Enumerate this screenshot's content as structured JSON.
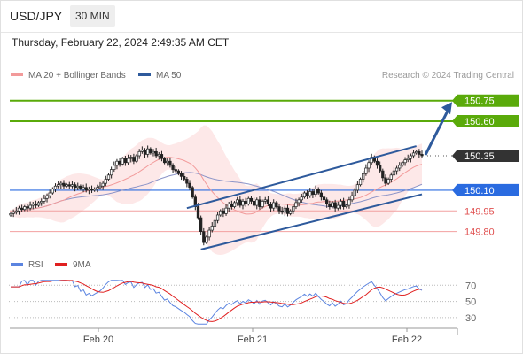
{
  "header": {
    "symbol": "USD/JPY",
    "timeframe": "30 MIN"
  },
  "datetime": "Thursday, February 22, 2024 2:49:35 AM CET",
  "legend": {
    "ma20_bb": "MA 20 + Bollinger Bands",
    "ma50": "MA 50"
  },
  "copyright": "Research © 2024 Trading Central",
  "rsi_legend": {
    "rsi": "RSI",
    "ma9": "9MA"
  },
  "colors": {
    "green": "#5aaa0a",
    "blue": "#2a6be0",
    "red": "#e05050",
    "dark": "#333333",
    "trend": "#2e5a9c",
    "bb_fill": "#fde4e4",
    "ma20": "#f29a9a",
    "ma50": "#8c94c8",
    "candle": "#222222"
  },
  "chart_data": [
    {
      "type": "candlestick",
      "x_ticks": [
        "Feb 20",
        "Feb 21",
        "Feb 22"
      ],
      "ylim": [
        149.65,
        150.87
      ],
      "levels": [
        {
          "label": "150.75",
          "value": 150.75,
          "style": "resistance",
          "color": "#5aaa0a"
        },
        {
          "label": "150.60",
          "value": 150.6,
          "style": "resistance",
          "color": "#5aaa0a"
        },
        {
          "label": "150.35",
          "value": 150.35,
          "style": "last-price",
          "color": "#333333"
        },
        {
          "label": "150.10",
          "value": 150.1,
          "style": "pivot",
          "color": "#2a6be0"
        },
        {
          "label": "149.95",
          "value": 149.95,
          "style": "support",
          "color": "#e05050"
        },
        {
          "label": "149.80",
          "value": 149.8,
          "style": "support",
          "color": "#e05050"
        }
      ],
      "close": [
        149.93,
        149.94,
        149.95,
        149.97,
        149.96,
        149.98,
        149.97,
        149.99,
        150.0,
        149.99,
        150.01,
        150.02,
        150.04,
        150.06,
        150.08,
        150.11,
        150.13,
        150.14,
        150.15,
        150.13,
        150.14,
        150.13,
        150.14,
        150.12,
        150.13,
        150.11,
        150.12,
        150.1,
        150.11,
        150.1,
        150.11,
        150.12,
        150.13,
        150.15,
        150.18,
        150.21,
        150.25,
        150.28,
        150.31,
        150.29,
        150.33,
        150.3,
        150.33,
        150.34,
        150.31,
        150.35,
        150.38,
        150.39,
        150.36,
        150.4,
        150.37,
        150.38,
        150.35,
        150.36,
        150.33,
        150.3,
        150.31,
        150.28,
        150.25,
        150.24,
        150.22,
        150.2,
        150.18,
        150.15,
        150.12,
        150.05,
        149.98,
        149.9,
        149.8,
        149.72,
        149.76,
        149.81,
        149.84,
        149.88,
        149.92,
        149.95,
        149.93,
        149.97,
        150.0,
        149.98,
        150.01,
        150.03,
        149.99,
        150.02,
        150.0,
        150.04,
        150.02,
        149.99,
        150.03,
        149.98,
        150.02,
        150.03,
        150.0,
        149.97,
        150.01,
        149.98,
        149.95,
        149.94,
        149.97,
        149.93,
        149.95,
        149.98,
        150.01,
        150.03,
        150.05,
        150.08,
        150.06,
        150.09,
        150.07,
        150.11,
        150.08,
        150.05,
        150.03,
        150.0,
        149.98,
        150.01,
        149.97,
        149.99,
        150.02,
        149.98,
        149.99,
        150.03,
        150.06,
        150.1,
        150.14,
        150.18,
        150.22,
        150.26,
        150.3,
        150.34,
        150.31,
        150.28,
        150.24,
        150.19,
        150.15,
        150.18,
        150.21,
        150.24,
        150.26,
        150.28,
        150.3,
        150.32,
        150.33,
        150.35,
        150.37,
        150.38,
        150.36,
        150.35
      ],
      "rsi": {
        "ylim": [
          20,
          78
        ],
        "ticks": [
          70,
          50,
          30
        ]
      }
    }
  ]
}
